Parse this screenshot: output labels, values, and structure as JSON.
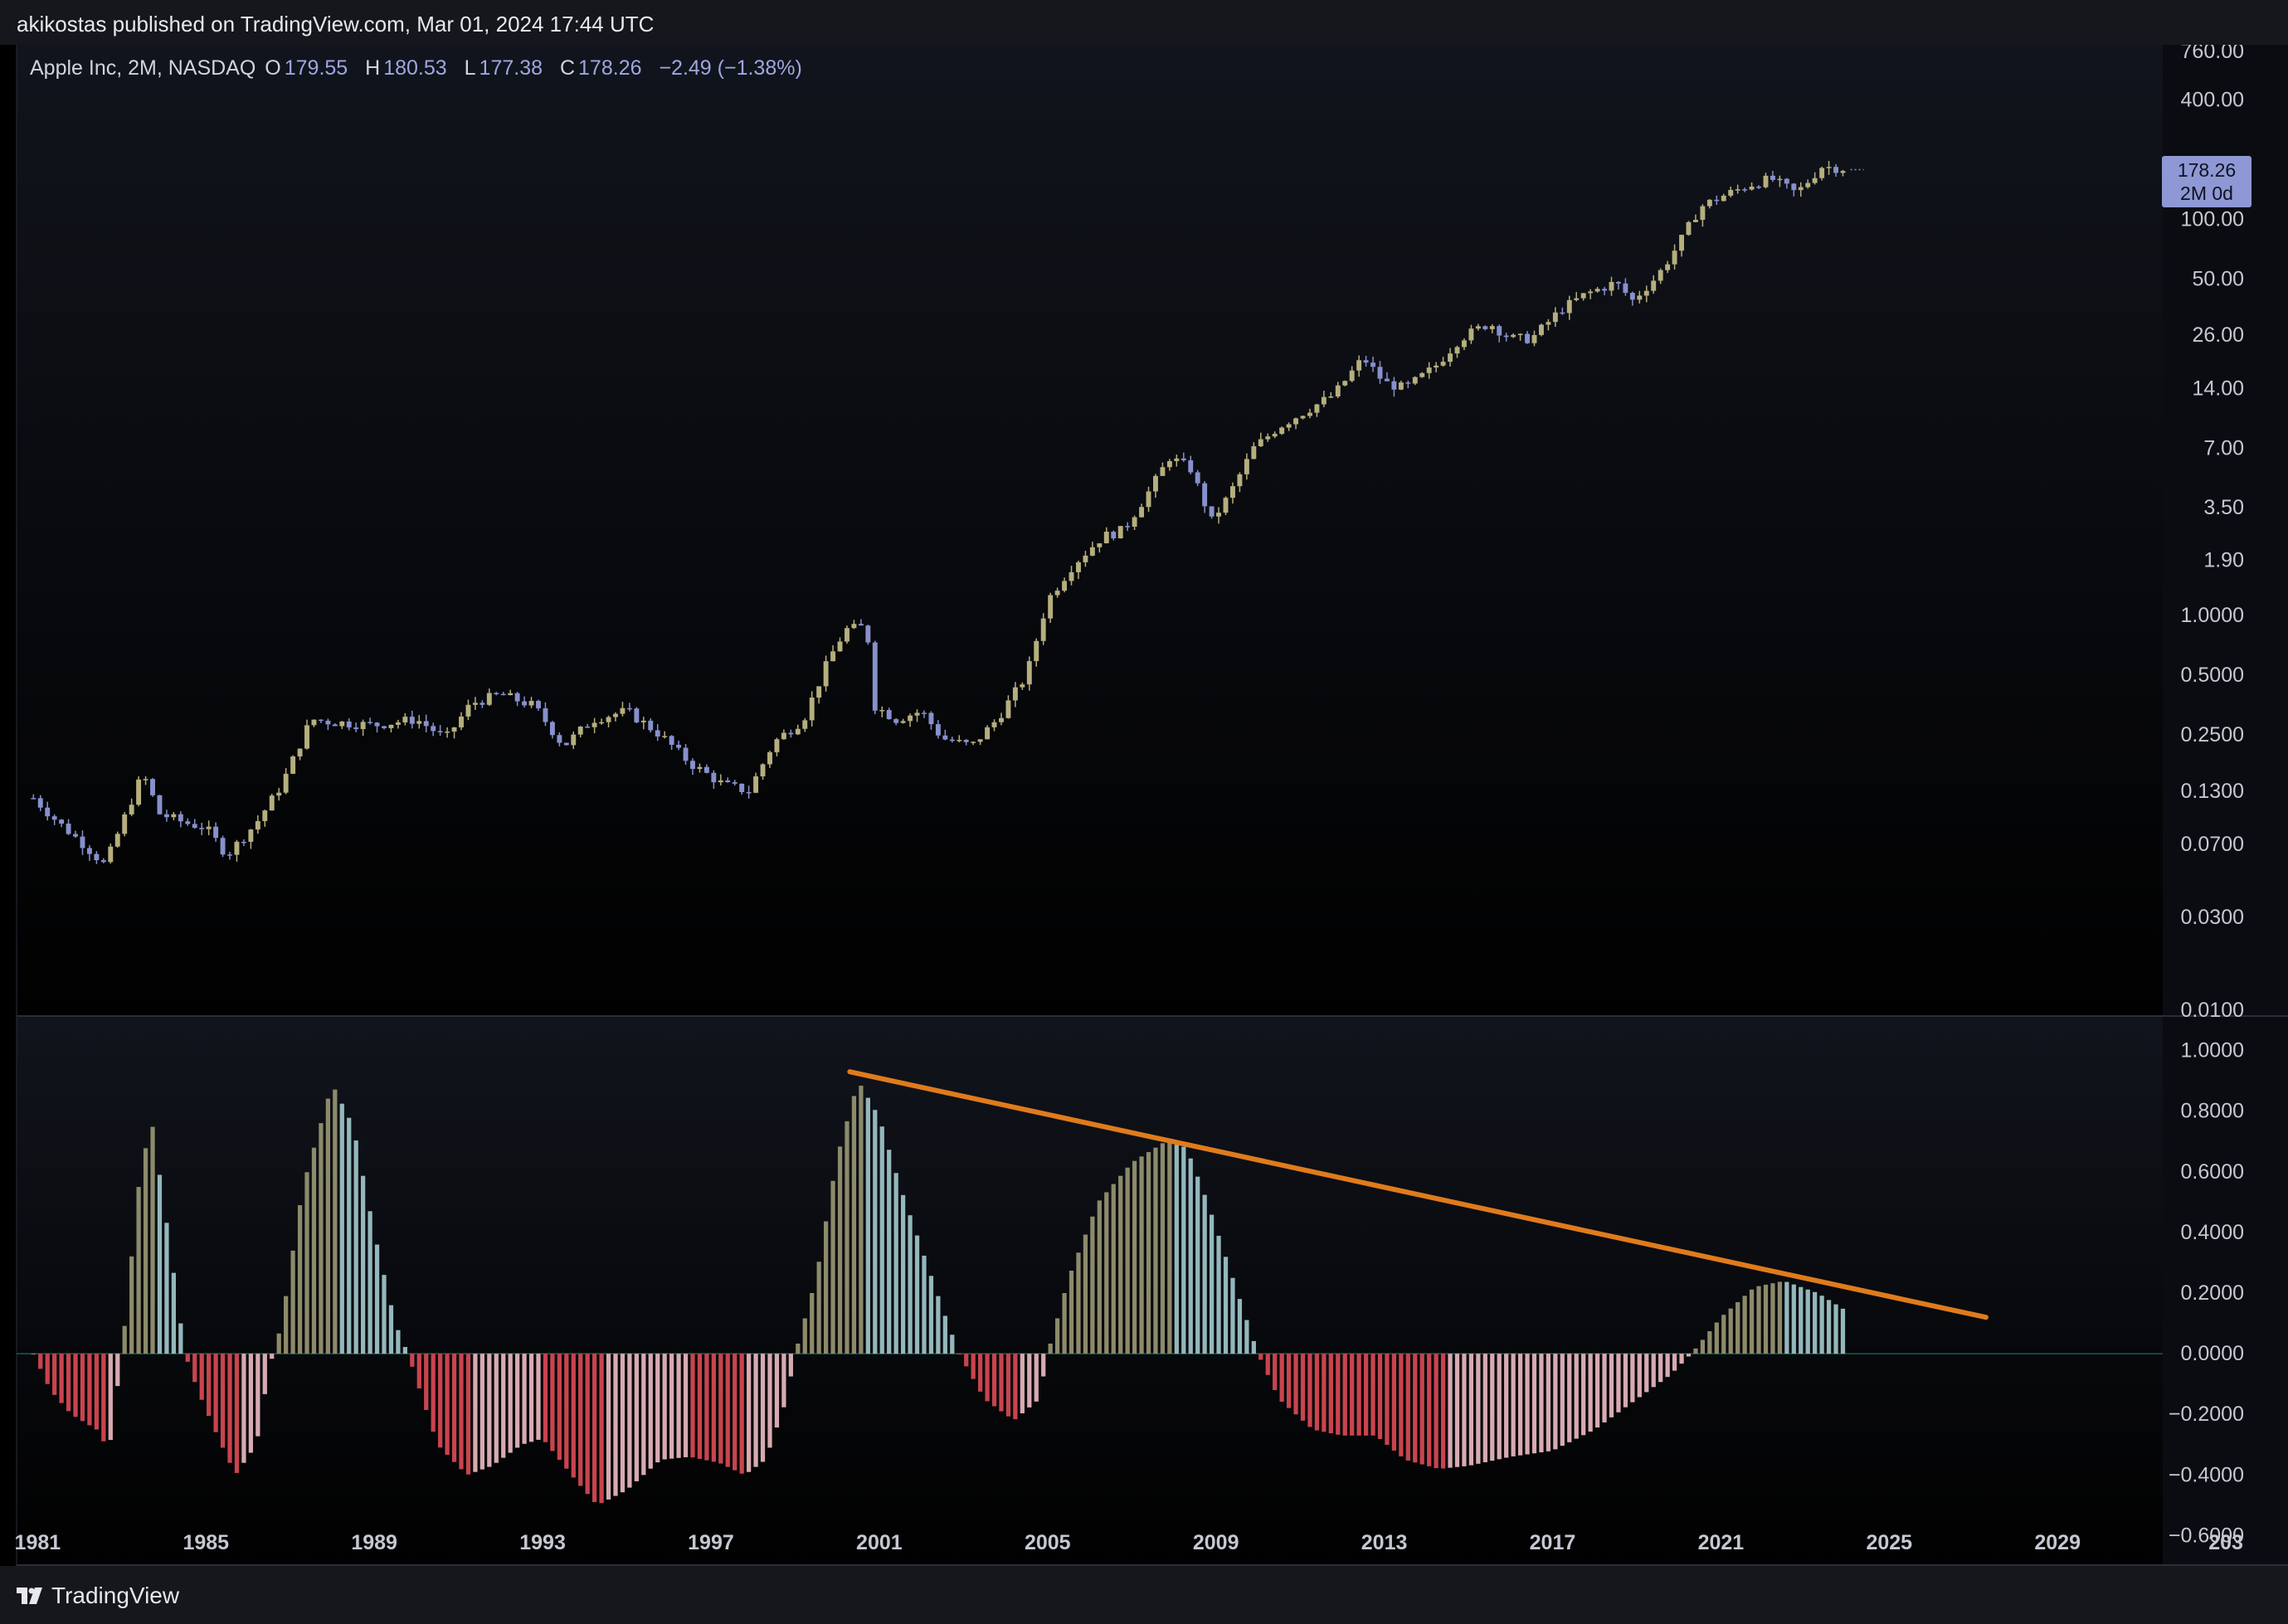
{
  "publisher": "akikostas published on TradingView.com, Mar 01, 2024 17:44 UTC",
  "footer": {
    "brand": "TradingView"
  },
  "legend": {
    "symbol": "Apple Inc, 2M, NASDAQ",
    "open_label": "O",
    "open": "179.55",
    "high_label": "H",
    "high": "180.53",
    "low_label": "L",
    "low": "177.38",
    "close_label": "C",
    "close": "178.26",
    "change": "−2.49 (−1.38%)"
  },
  "price_tag": {
    "price": "178.26",
    "countdown": "2M 0d"
  },
  "colors": {
    "background_top": "#11141c",
    "background_bottom": "#010101",
    "candle_up": "#b5ae7e",
    "candle_down": "#8790cc",
    "hist_pos_rising": "#8c8a6a",
    "hist_pos_falling": "#93b7bc",
    "hist_neg_falling": "#c8444e",
    "hist_neg_rising": "#d7aab1",
    "trendline": "#e07b1c",
    "zero_line": "#1f5a4a"
  },
  "chart_data": [
    {
      "type": "candlestick",
      "scale": "log",
      "ylim": [
        0.01,
        760
      ],
      "xlim": [
        1980.5,
        2031.5
      ],
      "y_ticks": [
        "760.00",
        "400.00",
        "100.00",
        "50.00",
        "26.00",
        "14.00",
        "7.00",
        "3.50",
        "1.90",
        "1.0000",
        "0.5000",
        "0.2500",
        "0.1300",
        "0.0700",
        "0.0300",
        "0.0100"
      ],
      "x_ticks": [
        "1981",
        "1985",
        "1989",
        "1993",
        "1997",
        "2001",
        "2005",
        "2009",
        "2013",
        "2017",
        "2021",
        "2025",
        "2029",
        "203"
      ],
      "last_price": 178.26,
      "anchors": [
        [
          1980.9,
          0.12
        ],
        [
          1981.5,
          0.09
        ],
        [
          1982.1,
          0.07
        ],
        [
          1982.6,
          0.055
        ],
        [
          1983.1,
          0.1
        ],
        [
          1983.5,
          0.16
        ],
        [
          1983.9,
          0.1
        ],
        [
          1984.5,
          0.09
        ],
        [
          1985.0,
          0.085
        ],
        [
          1985.5,
          0.062
        ],
        [
          1986.2,
          0.09
        ],
        [
          1986.8,
          0.14
        ],
        [
          1987.5,
          0.3
        ],
        [
          1988.0,
          0.29
        ],
        [
          1989.0,
          0.28
        ],
        [
          1990.0,
          0.3
        ],
        [
          1990.7,
          0.24
        ],
        [
          1991.3,
          0.36
        ],
        [
          1992.0,
          0.4
        ],
        [
          1992.8,
          0.35
        ],
        [
          1993.5,
          0.22
        ],
        [
          1994.2,
          0.3
        ],
        [
          1995.0,
          0.33
        ],
        [
          1995.8,
          0.25
        ],
        [
          1996.5,
          0.18
        ],
        [
          1997.3,
          0.14
        ],
        [
          1997.9,
          0.13
        ],
        [
          1998.5,
          0.23
        ],
        [
          1999.2,
          0.3
        ],
        [
          1999.8,
          0.6
        ],
        [
          2000.2,
          0.85
        ],
        [
          2000.7,
          0.88
        ],
        [
          2000.9,
          0.35
        ],
        [
          2001.4,
          0.3
        ],
        [
          2002.0,
          0.33
        ],
        [
          2002.5,
          0.24
        ],
        [
          2003.2,
          0.22
        ],
        [
          2003.8,
          0.3
        ],
        [
          2004.5,
          0.5
        ],
        [
          2005.0,
          1.2
        ],
        [
          2005.6,
          1.8
        ],
        [
          2006.3,
          2.5
        ],
        [
          2006.8,
          2.7
        ],
        [
          2007.4,
          4.2
        ],
        [
          2007.9,
          6.3
        ],
        [
          2008.4,
          5.5
        ],
        [
          2008.9,
          3.0
        ],
        [
          2009.3,
          4.0
        ],
        [
          2009.9,
          7.0
        ],
        [
          2010.5,
          9.0
        ],
        [
          2011.2,
          11.0
        ],
        [
          2011.8,
          13.0
        ],
        [
          2012.5,
          20.0
        ],
        [
          2013.0,
          15.0
        ],
        [
          2013.5,
          14.0
        ],
        [
          2014.2,
          18.0
        ],
        [
          2014.8,
          25.0
        ],
        [
          2015.5,
          30.0
        ],
        [
          2016.0,
          25.0
        ],
        [
          2016.5,
          25.0
        ],
        [
          2017.2,
          35.0
        ],
        [
          2017.8,
          42.0
        ],
        [
          2018.5,
          48.0
        ],
        [
          2018.9,
          39.0
        ],
        [
          2019.5,
          52.0
        ],
        [
          2020.0,
          75.0
        ],
        [
          2020.5,
          115.0
        ],
        [
          2021.0,
          130.0
        ],
        [
          2021.7,
          150.0
        ],
        [
          2022.2,
          160.0
        ],
        [
          2022.8,
          135.0
        ],
        [
          2023.4,
          185.0
        ],
        [
          2024.0,
          180.0
        ]
      ]
    },
    {
      "type": "bar",
      "ylim": [
        -0.7,
        1.1
      ],
      "y_ticks": [
        "1.0000",
        "0.8000",
        "0.6000",
        "0.4000",
        "0.2000",
        "0.0000",
        "−0.2000",
        "−0.4000",
        "−0.6000"
      ],
      "anchors": [
        [
          1980.9,
          0.0
        ],
        [
          1981.3,
          -0.12
        ],
        [
          1981.8,
          -0.2
        ],
        [
          1982.4,
          -0.25
        ],
        [
          1982.7,
          -0.32
        ],
        [
          1983.0,
          0.0
        ],
        [
          1983.4,
          0.55
        ],
        [
          1983.7,
          0.78
        ],
        [
          1984.1,
          0.4
        ],
        [
          1984.5,
          0.0
        ],
        [
          1984.8,
          -0.12
        ],
        [
          1985.3,
          -0.28
        ],
        [
          1985.7,
          -0.4
        ],
        [
          1986.2,
          -0.3
        ],
        [
          1986.5,
          -0.05
        ],
        [
          1986.8,
          0.1
        ],
        [
          1987.3,
          0.55
        ],
        [
          1988.0,
          0.89
        ],
        [
          1988.5,
          0.75
        ],
        [
          1989.0,
          0.4
        ],
        [
          1989.5,
          0.1
        ],
        [
          1989.8,
          0.0
        ],
        [
          1990.5,
          -0.3
        ],
        [
          1991.2,
          -0.4
        ],
        [
          1991.8,
          -0.37
        ],
        [
          1992.5,
          -0.3
        ],
        [
          1993.0,
          -0.28
        ],
        [
          1993.8,
          -0.42
        ],
        [
          1994.3,
          -0.5
        ],
        [
          1995.0,
          -0.45
        ],
        [
          1995.8,
          -0.35
        ],
        [
          1996.5,
          -0.34
        ],
        [
          1997.2,
          -0.36
        ],
        [
          1997.8,
          -0.4
        ],
        [
          1998.3,
          -0.35
        ],
        [
          1998.8,
          -0.15
        ],
        [
          1999.0,
          0.0
        ],
        [
          1999.5,
          0.25
        ],
        [
          2000.0,
          0.65
        ],
        [
          2000.5,
          0.9
        ],
        [
          2001.0,
          0.78
        ],
        [
          2001.5,
          0.55
        ],
        [
          2002.0,
          0.35
        ],
        [
          2002.5,
          0.15
        ],
        [
          2002.9,
          0.0
        ],
        [
          2003.5,
          -0.15
        ],
        [
          2004.2,
          -0.22
        ],
        [
          2004.8,
          -0.15
        ],
        [
          2005.0,
          0.0
        ],
        [
          2005.5,
          0.25
        ],
        [
          2006.2,
          0.5
        ],
        [
          2007.0,
          0.63
        ],
        [
          2007.8,
          0.7
        ],
        [
          2008.3,
          0.68
        ],
        [
          2008.8,
          0.5
        ],
        [
          2009.4,
          0.25
        ],
        [
          2010.0,
          0.0
        ],
        [
          2010.5,
          -0.15
        ],
        [
          2011.3,
          -0.25
        ],
        [
          2012.0,
          -0.27
        ],
        [
          2012.8,
          -0.27
        ],
        [
          2013.5,
          -0.35
        ],
        [
          2014.3,
          -0.38
        ],
        [
          2015.0,
          -0.37
        ],
        [
          2016.0,
          -0.34
        ],
        [
          2017.0,
          -0.32
        ],
        [
          2018.0,
          -0.25
        ],
        [
          2019.0,
          -0.15
        ],
        [
          2019.8,
          -0.07
        ],
        [
          2020.3,
          0.0
        ],
        [
          2021.0,
          0.12
        ],
        [
          2021.8,
          0.22
        ],
        [
          2022.5,
          0.24
        ],
        [
          2023.3,
          0.2
        ],
        [
          2024.0,
          0.14
        ]
      ],
      "trendline": {
        "from": [
          2000.3,
          0.93
        ],
        "to": [
          2027.3,
          0.12
        ]
      }
    }
  ]
}
